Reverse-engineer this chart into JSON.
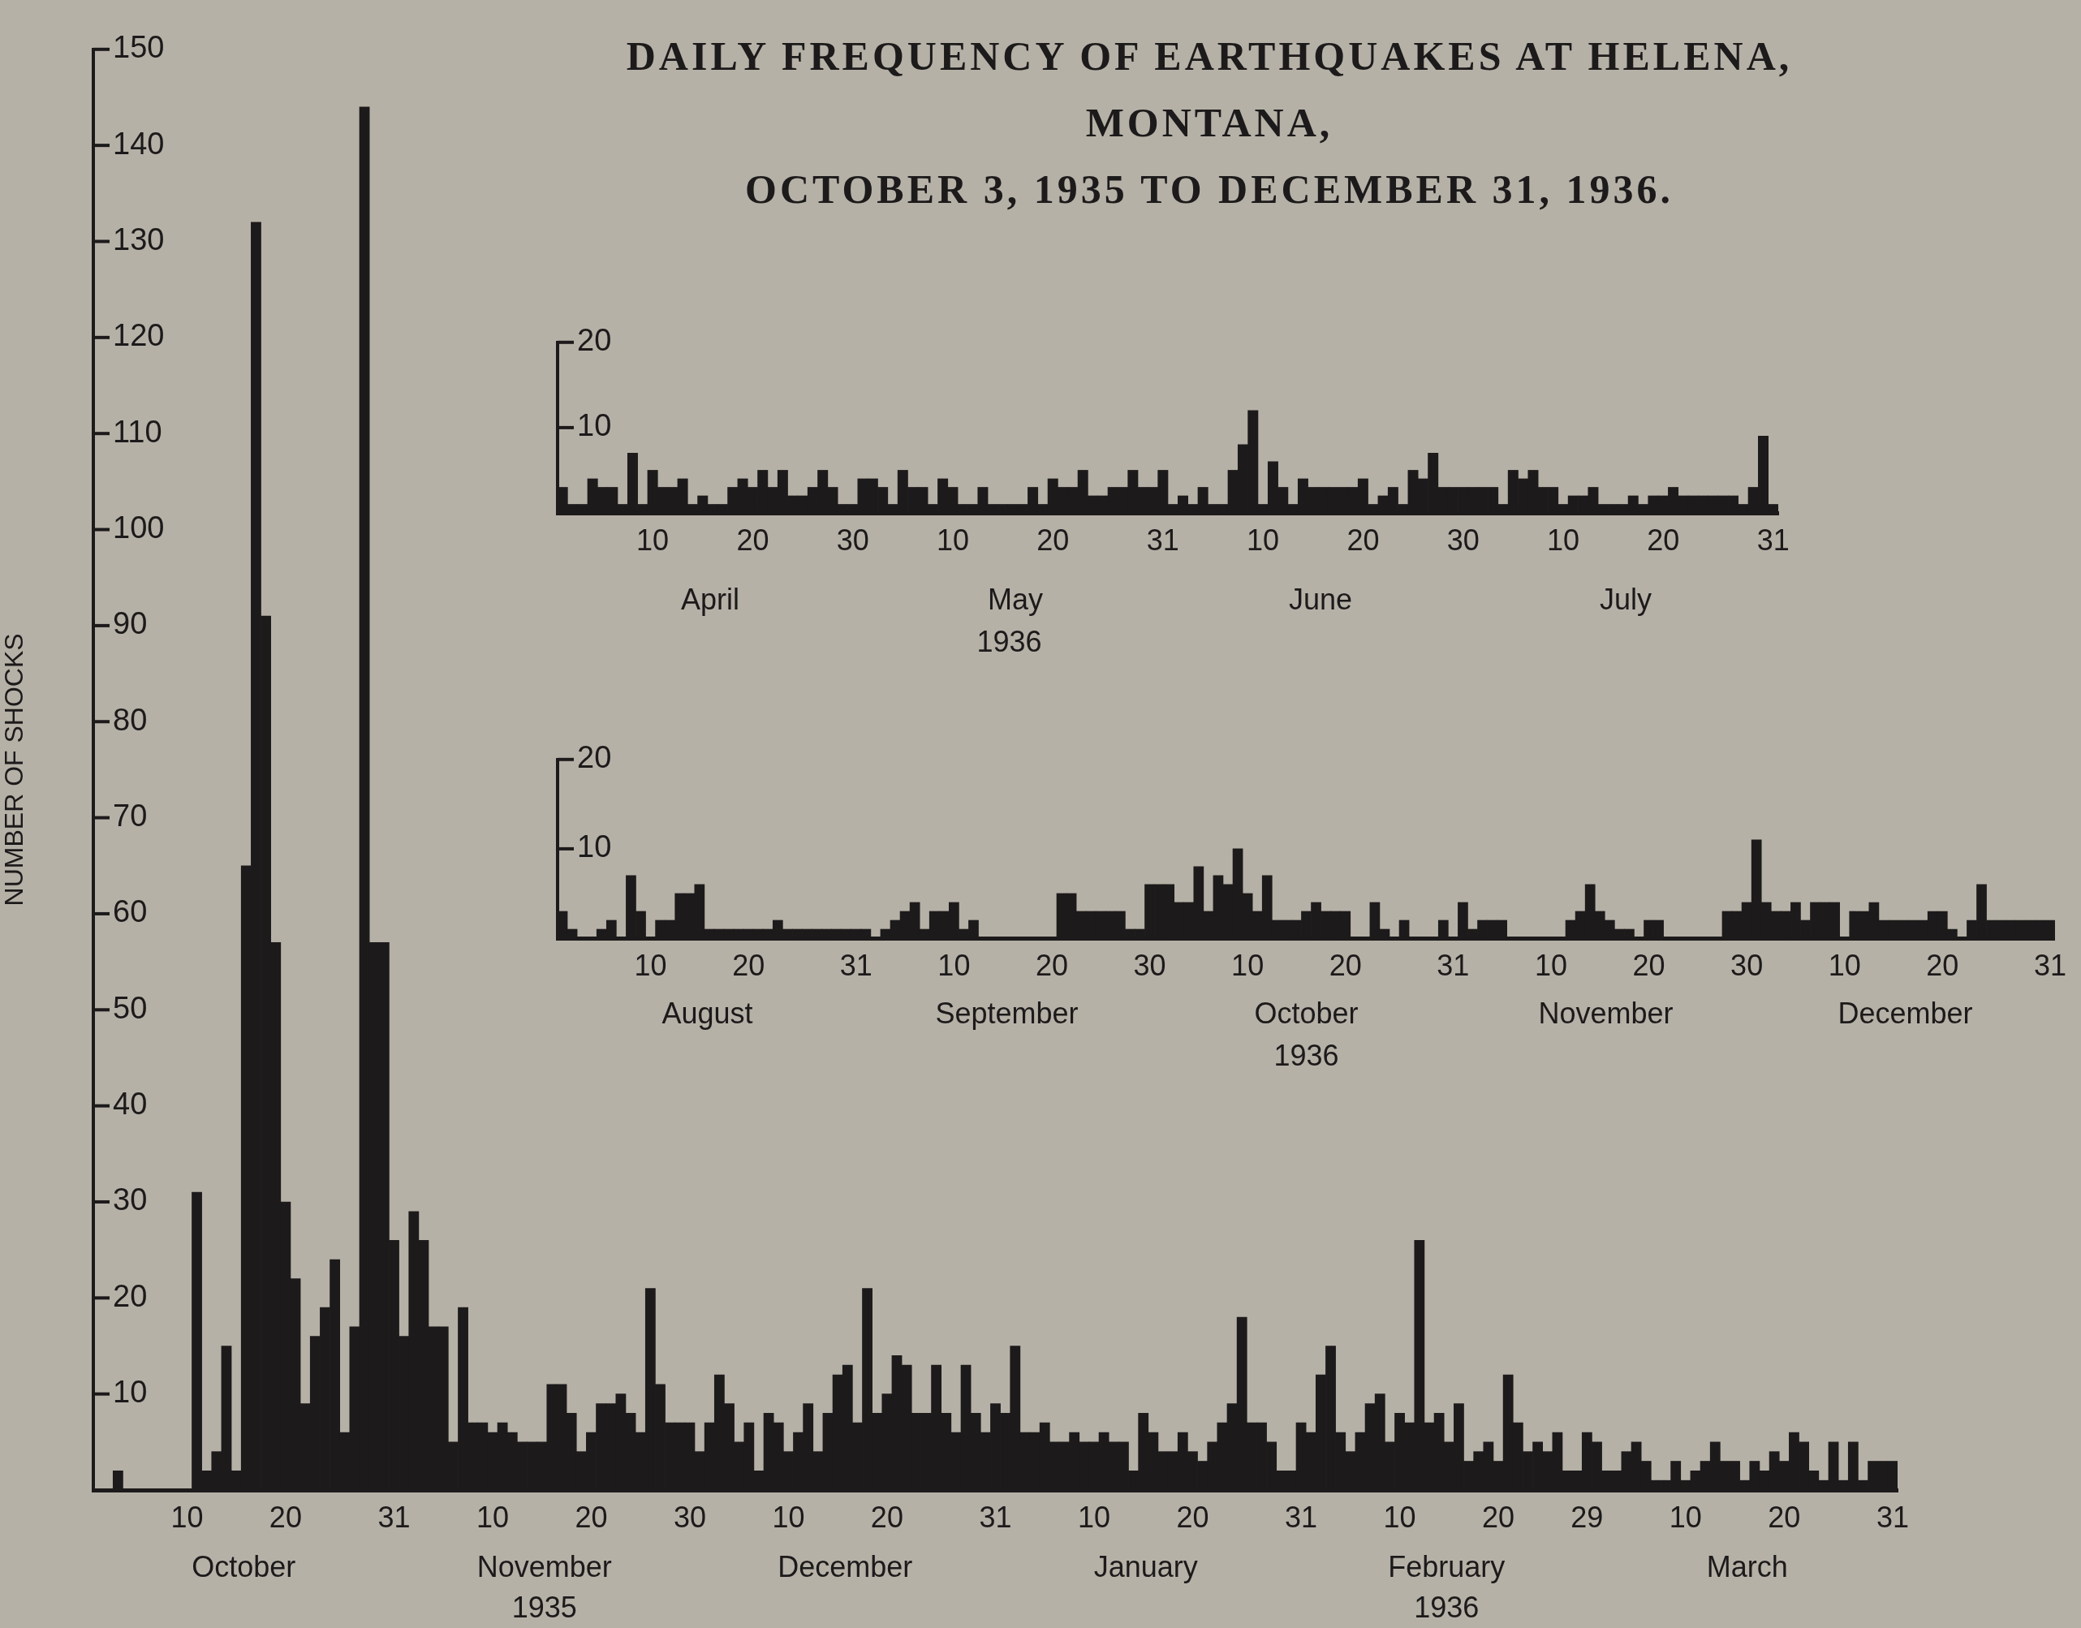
{
  "chart_data": [
    {
      "type": "bar",
      "title": "DAILY FREQUENCY OF EARTHQUAKES AT HELENA, MONTANA,",
      "subtitle": "OCTOBER 3, 1935 TO DECEMBER 31, 1936.",
      "ylabel": "NUMBER OF SHOCKS",
      "color": "#1c1a1a",
      "categories": [
        null,
        null,
        null,
        null,
        null,
        null,
        null,
        null,
        null,
        "10",
        null,
        null,
        null,
        null,
        null,
        null,
        null,
        null,
        null,
        "20",
        null,
        null,
        null,
        null,
        null,
        null,
        null,
        null,
        null,
        null,
        "31",
        null,
        null,
        null,
        null,
        null,
        null,
        null,
        null,
        null,
        "10",
        null,
        null,
        null,
        null,
        null,
        null,
        null,
        null,
        null,
        "20",
        null,
        null,
        null,
        null,
        null,
        null,
        null,
        null,
        null,
        "30",
        null,
        null,
        null,
        null,
        null,
        null,
        null,
        null,
        null,
        "10",
        null,
        null,
        null,
        null,
        null,
        null,
        null,
        null,
        null,
        "20",
        null,
        null,
        null,
        null,
        null,
        null,
        null,
        null,
        null,
        null,
        "31",
        null,
        null,
        null,
        null,
        null,
        null,
        null,
        null,
        null,
        "10",
        null,
        null,
        null,
        null,
        null,
        null,
        null,
        null,
        null,
        "20",
        null,
        null,
        null,
        null,
        null,
        null,
        null,
        null,
        null,
        null,
        "31",
        null,
        null,
        null,
        null,
        null,
        null,
        null,
        null,
        null,
        "10",
        null,
        null,
        null,
        null,
        null,
        null,
        null,
        null,
        null,
        "20",
        null,
        null,
        null,
        null,
        null,
        null,
        null,
        null,
        "29",
        null,
        null,
        null,
        null,
        null,
        null,
        null,
        null,
        null,
        "10",
        null,
        null,
        null,
        null,
        null,
        null,
        null,
        null,
        null,
        "20",
        null,
        null,
        null,
        null,
        null,
        null,
        null,
        null,
        null,
        null,
        "31"
      ],
      "values": [
        0,
        0,
        2,
        0,
        0,
        0,
        0,
        0,
        0,
        0,
        31,
        2,
        4,
        15,
        2,
        65,
        132,
        91,
        57,
        30,
        22,
        9,
        16,
        19,
        24,
        6,
        17,
        144,
        57,
        57,
        26,
        16,
        29,
        26,
        17,
        17,
        5,
        19,
        7,
        7,
        6,
        7,
        6,
        5,
        5,
        5,
        11,
        11,
        8,
        4,
        6,
        9,
        9,
        10,
        8,
        6,
        21,
        11,
        7,
        7,
        7,
        4,
        7,
        12,
        9,
        5,
        7,
        2,
        8,
        7,
        4,
        6,
        9,
        4,
        8,
        12,
        13,
        7,
        21,
        8,
        10,
        14,
        13,
        8,
        8,
        13,
        8,
        6,
        13,
        8,
        6,
        9,
        8,
        15,
        6,
        6,
        7,
        5,
        5,
        6,
        5,
        5,
        6,
        5,
        5,
        2,
        8,
        6,
        4,
        4,
        6,
        4,
        3,
        5,
        7,
        9,
        18,
        7,
        7,
        5,
        2,
        2,
        7,
        6,
        12,
        15,
        6,
        4,
        6,
        9,
        10,
        5,
        8,
        7,
        26,
        7,
        8,
        5,
        9,
        3,
        4,
        5,
        3,
        12,
        7,
        4,
        5,
        4,
        6,
        2,
        2,
        6,
        5,
        2,
        2,
        4,
        5,
        3,
        1,
        1,
        3,
        1,
        2,
        3,
        5,
        3,
        3,
        1,
        3,
        2,
        4,
        3,
        6,
        5,
        2,
        1,
        5,
        1,
        5,
        1,
        3,
        3,
        3
      ],
      "ylim": [
        0,
        150
      ],
      "yticks": [
        10,
        20,
        30,
        40,
        50,
        60,
        70,
        80,
        90,
        100,
        110,
        120,
        130,
        140,
        150
      ],
      "annotations": [
        "October",
        "November",
        "December",
        "January",
        "February",
        "March",
        "1935",
        "1936"
      ]
    },
    {
      "type": "bar",
      "color": "#1c1a1a",
      "xlabel": "1936",
      "categories": [
        null,
        null,
        null,
        null,
        null,
        null,
        null,
        null,
        null,
        "10",
        null,
        null,
        null,
        null,
        null,
        null,
        null,
        null,
        null,
        "20",
        null,
        null,
        null,
        null,
        null,
        null,
        null,
        null,
        null,
        "30",
        null,
        null,
        null,
        null,
        null,
        null,
        null,
        null,
        null,
        "10",
        null,
        null,
        null,
        null,
        null,
        null,
        null,
        null,
        null,
        "20",
        null,
        null,
        null,
        null,
        null,
        null,
        null,
        null,
        null,
        null,
        "31",
        null,
        null,
        null,
        null,
        null,
        null,
        null,
        null,
        null,
        "10",
        null,
        null,
        null,
        null,
        null,
        null,
        null,
        null,
        null,
        "20",
        null,
        null,
        null,
        null,
        null,
        null,
        null,
        null,
        null,
        "30",
        null,
        null,
        null,
        null,
        null,
        null,
        null,
        null,
        null,
        "10",
        null,
        null,
        null,
        null,
        null,
        null,
        null,
        null,
        null,
        "20",
        null,
        null,
        null,
        null,
        null,
        null,
        null,
        null,
        null,
        null,
        "31"
      ],
      "values": [
        3,
        1,
        1,
        4,
        3,
        3,
        1,
        7,
        1,
        5,
        3,
        3,
        4,
        1,
        2,
        1,
        1,
        3,
        4,
        3,
        5,
        3,
        5,
        2,
        2,
        3,
        5,
        3,
        1,
        1,
        4,
        4,
        3,
        1,
        5,
        3,
        3,
        1,
        4,
        3,
        1,
        1,
        3,
        1,
        1,
        1,
        1,
        3,
        1,
        4,
        3,
        3,
        5,
        2,
        2,
        3,
        3,
        5,
        3,
        3,
        5,
        1,
        2,
        1,
        3,
        1,
        1,
        5,
        8,
        12,
        1,
        6,
        3,
        1,
        4,
        3,
        3,
        3,
        3,
        3,
        4,
        1,
        2,
        3,
        1,
        5,
        4,
        7,
        3,
        3,
        3,
        3,
        3,
        3,
        1,
        5,
        4,
        5,
        3,
        3,
        1,
        2,
        2,
        3,
        1,
        1,
        1,
        2,
        1,
        2,
        2,
        3,
        2,
        2,
        2,
        2,
        2,
        2,
        1,
        3,
        9,
        1
      ],
      "ylim": [
        0,
        20
      ],
      "yticks": [
        10,
        20
      ],
      "annotations": [
        "April",
        "May",
        "June",
        "July"
      ]
    },
    {
      "type": "bar",
      "color": "#1c1a1a",
      "xlabel": "1936",
      "categories": [
        null,
        null,
        null,
        null,
        null,
        null,
        null,
        null,
        null,
        "10",
        null,
        null,
        null,
        null,
        null,
        null,
        null,
        null,
        null,
        "20",
        null,
        null,
        null,
        null,
        null,
        null,
        null,
        null,
        null,
        null,
        "31",
        null,
        null,
        null,
        null,
        null,
        null,
        null,
        null,
        null,
        "10",
        null,
        null,
        null,
        null,
        null,
        null,
        null,
        null,
        null,
        "20",
        null,
        null,
        null,
        null,
        null,
        null,
        null,
        null,
        null,
        "30",
        null,
        null,
        null,
        null,
        null,
        null,
        null,
        null,
        null,
        "10",
        null,
        null,
        null,
        null,
        null,
        null,
        null,
        null,
        null,
        "20",
        null,
        null,
        null,
        null,
        null,
        null,
        null,
        null,
        null,
        null,
        "31",
        null,
        null,
        null,
        null,
        null,
        null,
        null,
        null,
        null,
        "10",
        null,
        null,
        null,
        null,
        null,
        null,
        null,
        null,
        null,
        "20",
        null,
        null,
        null,
        null,
        null,
        null,
        null,
        null,
        null,
        "30",
        null,
        null,
        null,
        null,
        null,
        null,
        null,
        null,
        null,
        "10",
        null,
        null,
        null,
        null,
        null,
        null,
        null,
        null,
        null,
        "20",
        null,
        null,
        null,
        null,
        null,
        null,
        null,
        null,
        null,
        null,
        "31"
      ],
      "values": [
        3,
        1,
        0,
        0,
        1,
        2,
        0,
        7,
        3,
        0,
        2,
        2,
        5,
        5,
        6,
        1,
        1,
        1,
        1,
        1,
        1,
        1,
        2,
        1,
        1,
        1,
        1,
        1,
        1,
        1,
        1,
        1,
        0,
        1,
        2,
        3,
        4,
        1,
        3,
        3,
        4,
        1,
        2,
        0,
        0,
        0,
        0,
        0,
        0,
        0,
        0,
        5,
        5,
        3,
        3,
        3,
        3,
        3,
        1,
        1,
        6,
        6,
        6,
        4,
        4,
        8,
        3,
        7,
        6,
        10,
        5,
        3,
        7,
        2,
        2,
        2,
        3,
        4,
        3,
        3,
        3,
        0,
        0,
        4,
        1,
        0,
        2,
        0,
        0,
        0,
        2,
        0,
        4,
        1,
        2,
        2,
        2,
        0,
        0,
        0,
        0,
        0,
        0,
        2,
        3,
        6,
        3,
        2,
        1,
        1,
        0,
        2,
        2,
        0,
        0,
        0,
        0,
        0,
        0,
        3,
        3,
        4,
        11,
        4,
        3,
        3,
        4,
        2,
        4,
        4,
        4,
        0,
        3,
        3,
        4,
        2,
        2,
        2,
        2,
        2,
        3,
        3,
        1,
        0,
        2,
        6,
        2,
        2,
        2,
        2,
        2,
        2,
        2
      ],
      "ylim": [
        0,
        20
      ],
      "yticks": [
        10,
        20
      ],
      "annotations": [
        "August",
        "September",
        "October",
        "November",
        "December"
      ]
    }
  ]
}
